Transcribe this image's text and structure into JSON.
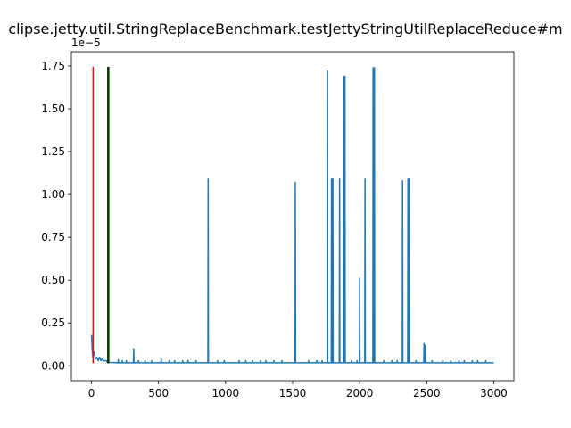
{
  "chart_data": {
    "type": "line",
    "title": "clipse.jetty.util.StringReplaceBenchmark.testJettyStringUtilReplaceReduce#m",
    "xlabel": "",
    "ylabel": "",
    "y_offset_label": "1e−5",
    "xlim": [
      -150,
      3150
    ],
    "ylim": [
      -0.087,
      1.833
    ],
    "x_ticks": [
      0,
      500,
      1000,
      1500,
      2000,
      2500,
      3000
    ],
    "x_tick_labels": [
      "0",
      "500",
      "1000",
      "1500",
      "2000",
      "2500",
      "3000"
    ],
    "y_ticks": [
      0.0,
      0.25,
      0.5,
      0.75,
      1.0,
      1.25,
      1.5,
      1.75
    ],
    "y_tick_labels": [
      "0.00",
      "0.25",
      "0.50",
      "0.75",
      "1.00",
      "1.25",
      "1.50",
      "1.75"
    ],
    "grid": false,
    "series": [
      {
        "color": "#1f77b4",
        "baseline": 0.018,
        "early_points": [
          [
            0,
            0.18
          ],
          [
            5,
            0.1
          ],
          [
            10,
            0.05
          ],
          [
            20,
            0.08
          ],
          [
            30,
            0.04
          ],
          [
            40,
            0.05
          ],
          [
            50,
            0.03
          ],
          [
            60,
            0.05
          ],
          [
            70,
            0.03
          ],
          [
            80,
            0.04
          ],
          [
            90,
            0.03
          ],
          [
            100,
            0.03
          ],
          [
            110,
            0.03
          ],
          [
            120,
            0.02
          ]
        ],
        "spikes": [
          [
            315,
            0.1
          ],
          [
            520,
            0.04
          ],
          [
            870,
            1.09
          ],
          [
            1520,
            1.07
          ],
          [
            1760,
            1.72
          ],
          [
            1790,
            1.09
          ],
          [
            1800,
            1.09
          ],
          [
            1850,
            1.09
          ],
          [
            1880,
            1.69
          ],
          [
            1890,
            1.69
          ],
          [
            2000,
            0.51
          ],
          [
            2040,
            1.09
          ],
          [
            2100,
            1.74
          ],
          [
            2110,
            1.74
          ],
          [
            2320,
            1.08
          ],
          [
            2360,
            1.09
          ],
          [
            2370,
            1.09
          ],
          [
            2480,
            0.13
          ],
          [
            2490,
            0.12
          ],
          [
            200,
            0.035
          ],
          [
            230,
            0.03
          ],
          [
            260,
            0.03
          ],
          [
            350,
            0.03
          ],
          [
            400,
            0.03
          ],
          [
            450,
            0.03
          ],
          [
            580,
            0.03
          ],
          [
            620,
            0.03
          ],
          [
            680,
            0.03
          ],
          [
            720,
            0.03
          ],
          [
            780,
            0.03
          ],
          [
            940,
            0.03
          ],
          [
            990,
            0.03
          ],
          [
            1100,
            0.03
          ],
          [
            1150,
            0.03
          ],
          [
            1200,
            0.03
          ],
          [
            1260,
            0.03
          ],
          [
            1300,
            0.03
          ],
          [
            1360,
            0.03
          ],
          [
            1420,
            0.03
          ],
          [
            1620,
            0.03
          ],
          [
            1680,
            0.03
          ],
          [
            1720,
            0.03
          ],
          [
            1940,
            0.03
          ],
          [
            1980,
            0.03
          ],
          [
            2180,
            0.03
          ],
          [
            2240,
            0.03
          ],
          [
            2280,
            0.03
          ],
          [
            2420,
            0.03
          ],
          [
            2540,
            0.03
          ],
          [
            2620,
            0.03
          ],
          [
            2680,
            0.03
          ],
          [
            2740,
            0.03
          ],
          [
            2780,
            0.03
          ],
          [
            2840,
            0.03
          ],
          [
            2880,
            0.03
          ],
          [
            2940,
            0.03
          ]
        ],
        "x_max": 3000
      }
    ],
    "vertical_lines": [
      {
        "x": 12,
        "y": [
          0.015,
          1.745
        ],
        "color": "#ff0000"
      },
      {
        "x": 125,
        "y": [
          0.015,
          1.745
        ],
        "color": "#003300"
      }
    ]
  }
}
